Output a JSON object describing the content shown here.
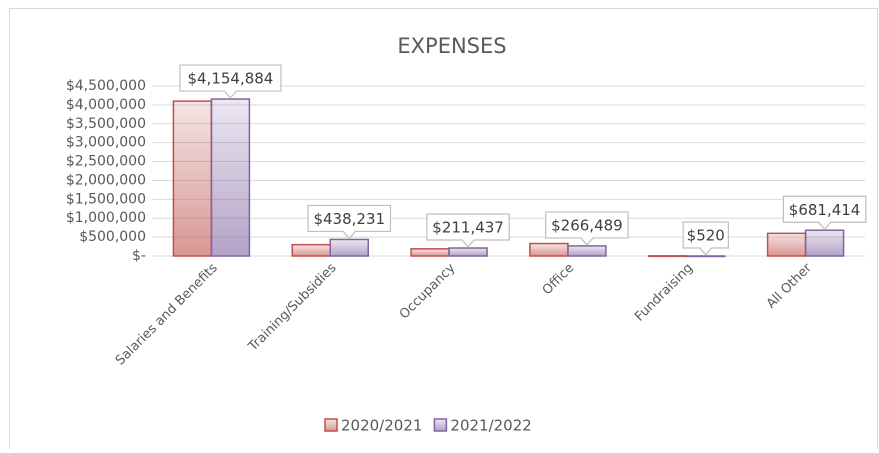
{
  "chart_data": {
    "type": "bar",
    "title": "EXPENSES",
    "categories": [
      "Salaries and Benefits",
      "Training/Subsidies",
      "Occupancy",
      "Office",
      "Fundraising",
      "All Other"
    ],
    "series": [
      {
        "name": "2020/2021",
        "color": "#c0504d",
        "values": [
          4100000,
          300000,
          190000,
          330000,
          5000,
          600000
        ]
      },
      {
        "name": "2021/2022",
        "color": "#8064a2",
        "values": [
          4154884,
          438231,
          211437,
          266489,
          520,
          681414
        ],
        "value_labels": [
          "$4,154,884",
          "$438,231",
          "$211,437",
          "$266,489",
          "$520",
          "$681,414"
        ]
      }
    ],
    "ylim": [
      0,
      4500000
    ],
    "yticks": [
      {
        "value": 0,
        "label": "$-"
      },
      {
        "value": 500000,
        "label": "$500,000"
      },
      {
        "value": 1000000,
        "label": "$1,000,000"
      },
      {
        "value": 1500000,
        "label": "$1,500,000"
      },
      {
        "value": 2000000,
        "label": "$2,000,000"
      },
      {
        "value": 2500000,
        "label": "$2,500,000"
      },
      {
        "value": 3000000,
        "label": "$3,000,000"
      },
      {
        "value": 3500000,
        "label": "$3,500,000"
      },
      {
        "value": 4000000,
        "label": "$4,000,000"
      },
      {
        "value": 4500000,
        "label": "$4,500,000"
      }
    ],
    "grid": true,
    "legend": "bottom"
  }
}
